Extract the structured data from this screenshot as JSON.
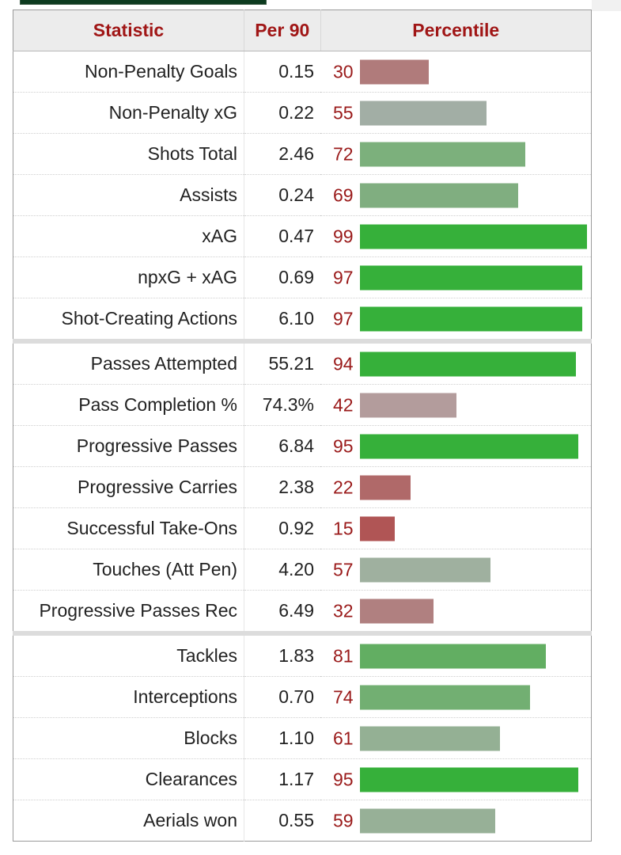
{
  "header": {
    "statistic": "Statistic",
    "per90": "Per 90",
    "percentile": "Percentile"
  },
  "bar_colors": {
    "strong_green": "#37af3a",
    "green": "#7ab17a",
    "gray_green": "#9fb0a3",
    "muted_red": "#b07d7d",
    "light_red": "#b39a9a",
    "red": "#b35454"
  },
  "rows": [
    {
      "stat": "Non-Penalty Goals",
      "per90": "0.15",
      "pct": 30,
      "color": "#b07b7b"
    },
    {
      "stat": "Non-Penalty xG",
      "per90": "0.22",
      "pct": 55,
      "color": "#a2aea5"
    },
    {
      "stat": "Shots Total",
      "per90": "2.46",
      "pct": 72,
      "color": "#7cb07c"
    },
    {
      "stat": "Assists",
      "per90": "0.24",
      "pct": 69,
      "color": "#80ae80"
    },
    {
      "stat": "xAG",
      "per90": "0.47",
      "pct": 99,
      "color": "#36b03a",
      "section_start": false
    },
    {
      "stat": "npxG + xAG",
      "per90": "0.69",
      "pct": 97,
      "color": "#36b03a"
    },
    {
      "stat": "Shot-Creating Actions",
      "per90": "6.10",
      "pct": 97,
      "color": "#36b03a"
    },
    {
      "stat": "Passes Attempted",
      "per90": "55.21",
      "pct": 94,
      "color": "#36b03a",
      "section_start": true
    },
    {
      "stat": "Pass Completion %",
      "per90": "74.3%",
      "pct": 42,
      "color": "#b39c9c"
    },
    {
      "stat": "Progressive Passes",
      "per90": "6.84",
      "pct": 95,
      "color": "#36b03a"
    },
    {
      "stat": "Progressive Carries",
      "per90": "2.38",
      "pct": 22,
      "color": "#b06969"
    },
    {
      "stat": "Successful Take-Ons",
      "per90": "0.92",
      "pct": 15,
      "color": "#b05555"
    },
    {
      "stat": "Touches (Att Pen)",
      "per90": "4.20",
      "pct": 57,
      "color": "#9fb09f"
    },
    {
      "stat": "Progressive Passes Rec",
      "per90": "6.49",
      "pct": 32,
      "color": "#b08080"
    },
    {
      "stat": "Tackles",
      "per90": "1.83",
      "pct": 81,
      "color": "#62ae62",
      "section_start": true
    },
    {
      "stat": "Interceptions",
      "per90": "0.70",
      "pct": 74,
      "color": "#72af72"
    },
    {
      "stat": "Blocks",
      "per90": "1.10",
      "pct": 61,
      "color": "#94b094"
    },
    {
      "stat": "Clearances",
      "per90": "1.17",
      "pct": 95,
      "color": "#36b03a"
    },
    {
      "stat": "Aerials won",
      "per90": "0.55",
      "pct": 59,
      "color": "#97b097"
    }
  ]
}
